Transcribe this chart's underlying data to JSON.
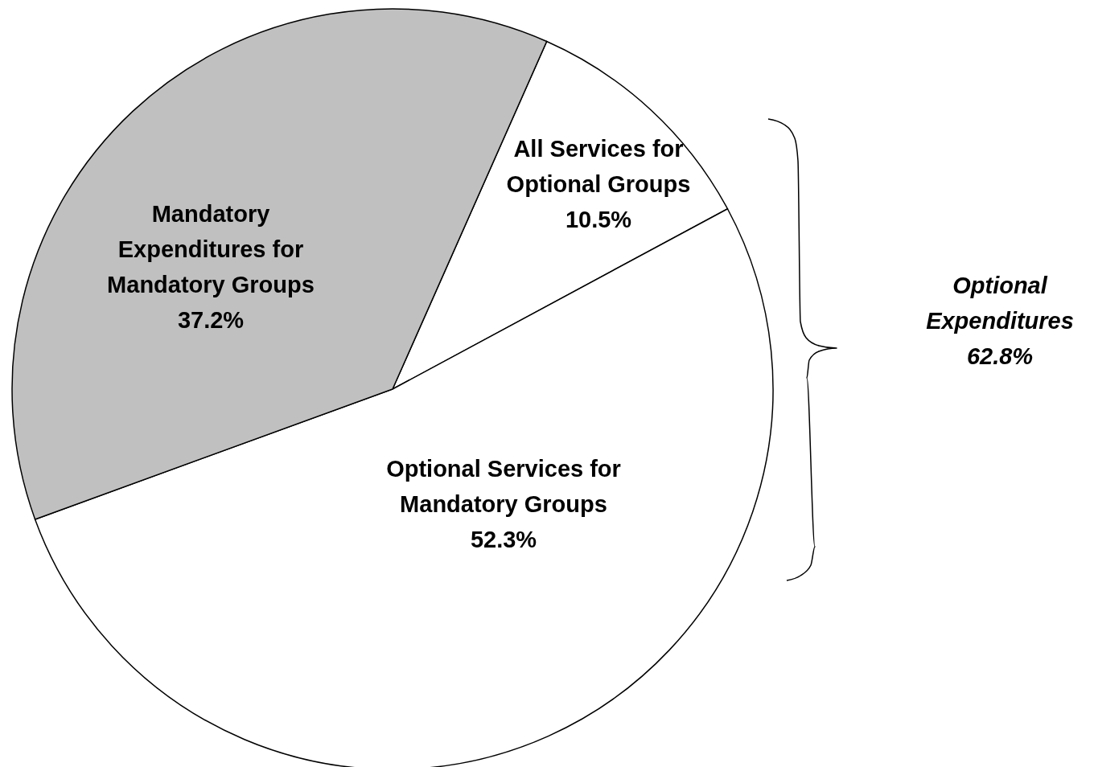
{
  "chart_data": {
    "type": "pie",
    "categories": [
      "All Services for Optional Groups",
      "Optional Services for Mandatory Groups",
      "Mandatory Expenditures for Mandatory Groups"
    ],
    "values": [
      10.5,
      52.3,
      37.2
    ],
    "colors": [
      "#ffffff",
      "#ffffff",
      "#c0c0c0"
    ],
    "value_labels": [
      "10.5%",
      "52.3%",
      "37.2%"
    ],
    "annotations": [
      "Optional Expenditures 62.8%"
    ]
  }
}
